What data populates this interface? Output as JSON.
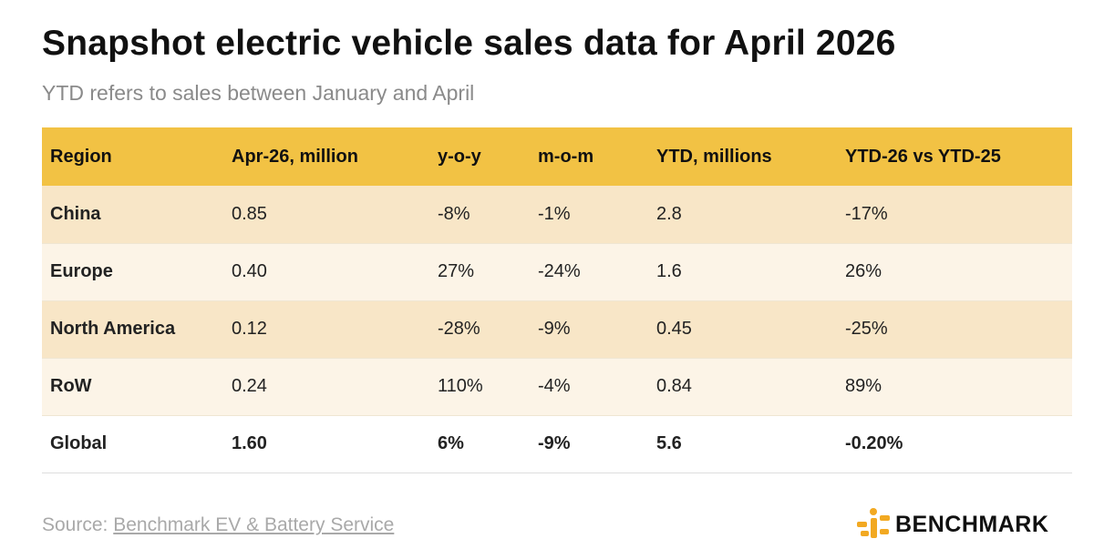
{
  "title": "Snapshot electric vehicle sales data for April 2026",
  "subtitle": "YTD refers to sales between January and April",
  "table": {
    "headers": [
      "Region",
      "Apr-26, million",
      "y-o-y",
      "m-o-m",
      "YTD, millions",
      "YTD-26 vs YTD-25"
    ],
    "rows": [
      [
        "China",
        "0.85",
        "-8%",
        "-1%",
        "2.8",
        "-17%"
      ],
      [
        "Europe",
        "0.40",
        "27%",
        "-24%",
        "1.6",
        "26%"
      ],
      [
        "North America",
        "0.12",
        "-28%",
        "-9%",
        "0.45",
        "-25%"
      ],
      [
        "RoW",
        "0.24",
        "110%",
        "-4%",
        "0.84",
        "89%"
      ],
      [
        "Global",
        "1.60",
        "6%",
        "-9%",
        "5.6",
        "-0.20%"
      ]
    ]
  },
  "footer": {
    "source_prefix": "Source: ",
    "source_link": "Benchmark EV & Battery Service",
    "brand_name": "BENCHMARK",
    "brand_icon": "benchmark-logo-icon"
  },
  "colors": {
    "header_bg": "#f2c244",
    "row_odd_bg": "#f8e6c7",
    "row_even_bg": "#fcf4e7",
    "logo_accent": "#f2a922"
  }
}
